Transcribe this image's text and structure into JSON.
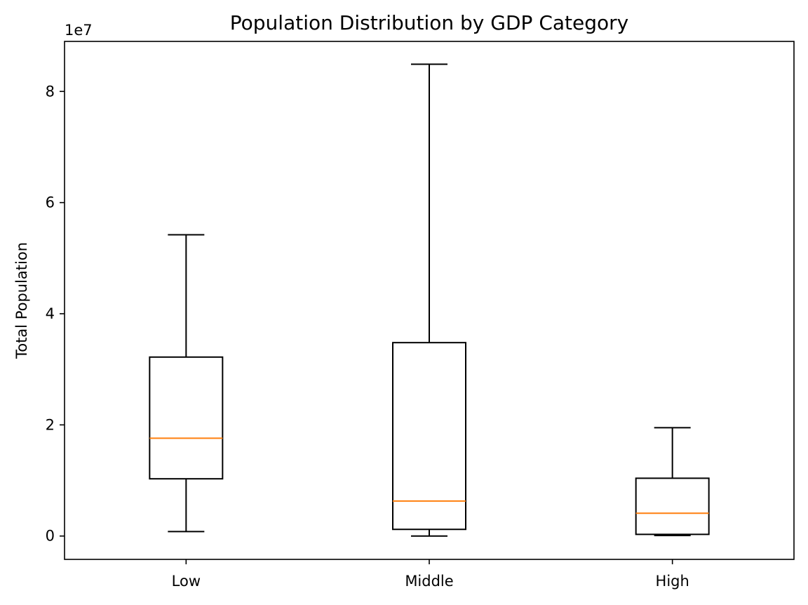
{
  "chart_data": {
    "type": "boxplot",
    "title": "Population Distribution by GDP Category",
    "xlabel": "",
    "ylabel": "Total Population",
    "y_offset_label": "1e7",
    "y_multiplier": 10000000,
    "ylim": [
      -4200000,
      89000000
    ],
    "yticks": [
      0,
      20000000,
      40000000,
      60000000,
      80000000
    ],
    "ytick_labels": [
      "0",
      "2",
      "4",
      "6",
      "8"
    ],
    "grid": false,
    "categories": [
      "Low",
      "Middle",
      "High"
    ],
    "boxes": [
      {
        "category": "Low",
        "whisker_low": 800000,
        "q1": 10300000,
        "median": 17600000,
        "q3": 32200000,
        "whisker_high": 54200000
      },
      {
        "category": "Middle",
        "whisker_low": 0,
        "q1": 1200000,
        "median": 6300000,
        "q3": 34800000,
        "whisker_high": 84900000
      },
      {
        "category": "High",
        "whisker_low": 100000,
        "q1": 300000,
        "median": 4100000,
        "q3": 10400000,
        "whisker_high": 19500000
      }
    ],
    "colors": {
      "box": "#000000",
      "median": "#ff7f0e"
    }
  }
}
